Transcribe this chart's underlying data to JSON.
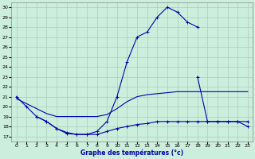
{
  "title": "Graphe des températures (°c)",
  "bg_color": "#cceedd",
  "grid_color": "#aaccbb",
  "line_color": "#0000aa",
  "x_ticks": [
    0,
    1,
    2,
    3,
    4,
    5,
    6,
    7,
    8,
    9,
    10,
    11,
    12,
    13,
    14,
    15,
    16,
    17,
    18,
    19,
    20,
    21,
    22,
    23
  ],
  "y_ticks": [
    17,
    18,
    19,
    20,
    21,
    22,
    23,
    24,
    25,
    26,
    27,
    28,
    29,
    30
  ],
  "xlim": [
    -0.5,
    23.5
  ],
  "ylim": [
    16.5,
    30.5
  ],
  "curves": [
    {
      "x": [
        0,
        1,
        2,
        3,
        4,
        5,
        6,
        7,
        8,
        9,
        10,
        11,
        12,
        13,
        14,
        15,
        16,
        17,
        18
      ],
      "y": [
        21,
        20,
        19,
        18.5,
        17.8,
        17.4,
        17.2,
        17.2,
        17.5,
        18.5,
        21,
        24.5,
        27,
        27.5,
        29,
        30,
        29.5,
        28.5,
        28
      ],
      "marker": true
    },
    {
      "x": [
        0,
        1,
        2,
        3,
        4,
        5,
        6,
        7,
        8,
        9,
        10,
        11,
        12,
        13,
        14,
        15,
        16,
        17,
        18,
        19,
        20,
        21,
        22,
        23
      ],
      "y": [
        20.8,
        20.3,
        19.8,
        19.3,
        19.0,
        19.0,
        19.0,
        19.0,
        19.0,
        19.2,
        19.8,
        20.5,
        21.0,
        21.2,
        21.3,
        21.4,
        21.5,
        21.5,
        21.5,
        21.5,
        21.5,
        21.5,
        21.5,
        21.5
      ],
      "marker": false
    },
    {
      "x": [
        2,
        3,
        4,
        5,
        6,
        7,
        8,
        9,
        10,
        11,
        12,
        13,
        14,
        15,
        16,
        17,
        18,
        19,
        20,
        21,
        22,
        23
      ],
      "y": [
        19,
        18.5,
        17.8,
        17.3,
        17.2,
        17.2,
        17.2,
        17.5,
        17.8,
        18.0,
        18.2,
        18.3,
        18.5,
        18.5,
        18.5,
        18.5,
        18.5,
        18.5,
        18.5,
        18.5,
        18.5,
        18.5
      ],
      "marker": true
    },
    {
      "x": [
        18,
        19,
        20,
        21,
        22,
        23
      ],
      "y": [
        23.0,
        18.5,
        18.5,
        18.5,
        18.5,
        18.0
      ],
      "marker": true
    }
  ]
}
